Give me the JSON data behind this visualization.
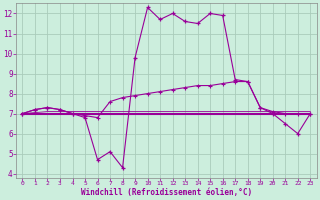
{
  "xlabel": "Windchill (Refroidissement éolien,°C)",
  "bg_color": "#cceedd",
  "grid_color": "#aaddcc",
  "line_color": "#990099",
  "xlim": [
    -0.5,
    23.5
  ],
  "ylim": [
    3.8,
    12.5
  ],
  "yticks": [
    4,
    5,
    6,
    7,
    8,
    9,
    10,
    11,
    12
  ],
  "xticks": [
    0,
    1,
    2,
    3,
    4,
    5,
    6,
    7,
    8,
    9,
    10,
    11,
    12,
    13,
    14,
    15,
    16,
    17,
    18,
    19,
    20,
    21,
    22,
    23
  ],
  "series": {
    "line1": [
      7.0,
      7.2,
      7.3,
      7.2,
      7.0,
      6.8,
      4.7,
      5.1,
      4.3,
      9.8,
      12.3,
      11.7,
      12.0,
      11.6,
      11.5,
      12.0,
      11.9,
      8.7,
      8.6,
      7.3,
      7.0,
      6.5,
      6.0,
      7.0
    ],
    "line2": [
      7.0,
      7.2,
      7.3,
      7.2,
      7.0,
      6.9,
      6.8,
      7.6,
      7.8,
      7.9,
      8.0,
      8.1,
      8.2,
      8.3,
      8.4,
      8.4,
      8.5,
      8.6,
      8.6,
      7.3,
      7.1,
      7.0,
      7.0,
      7.0
    ],
    "line3": [
      7.0,
      7.0,
      7.0,
      7.0,
      7.0,
      7.0,
      7.0,
      7.0,
      7.0,
      7.0,
      7.0,
      7.0,
      7.0,
      7.0,
      7.0,
      7.0,
      7.0,
      7.0,
      7.0,
      7.0,
      7.0,
      7.0,
      7.0,
      7.0
    ],
    "line4": [
      7.0,
      7.05,
      7.1,
      7.1,
      7.1,
      7.1,
      7.1,
      7.1,
      7.1,
      7.1,
      7.1,
      7.1,
      7.1,
      7.1,
      7.1,
      7.1,
      7.1,
      7.1,
      7.1,
      7.1,
      7.1,
      7.1,
      7.1,
      7.1
    ]
  }
}
